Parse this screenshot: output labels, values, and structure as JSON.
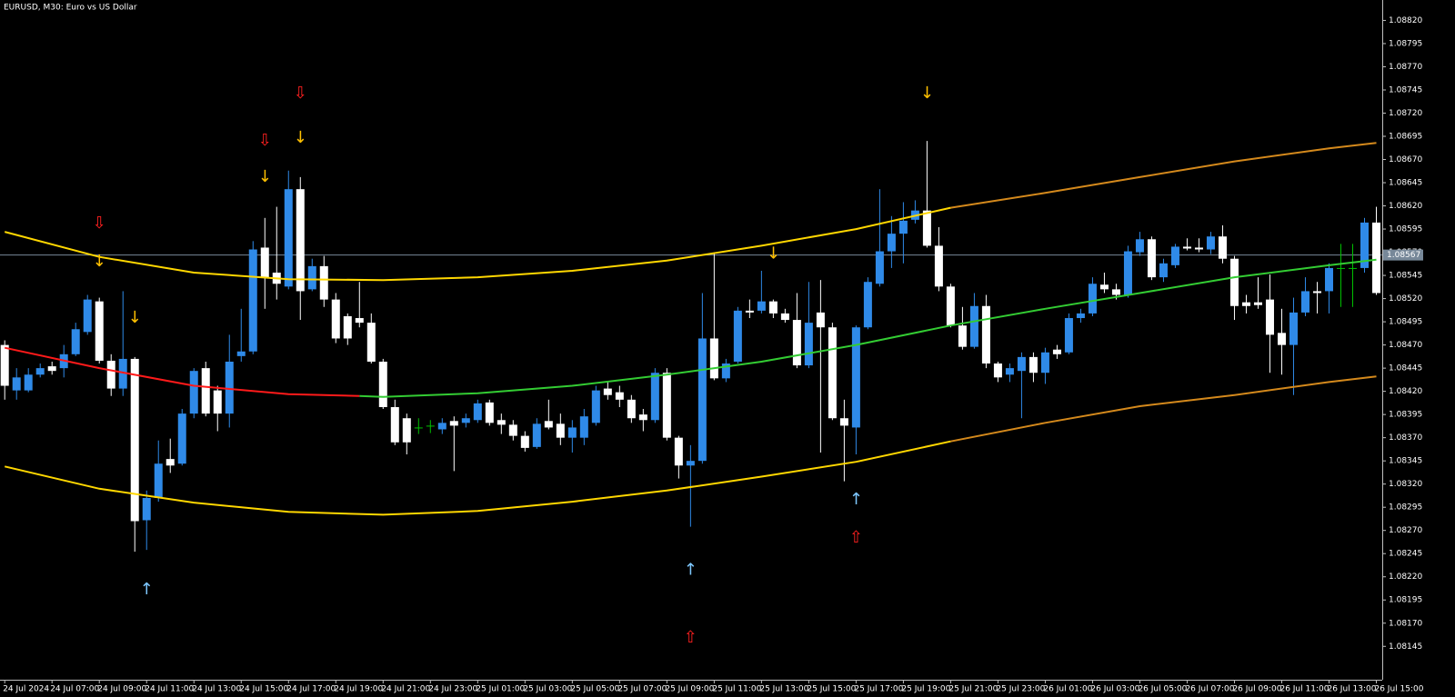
{
  "chart_data": {
    "type": "candlestick",
    "title": "EURUSD, M30:  Euro vs US Dollar",
    "up_color": "#2f8ae8",
    "down_color": "#ffffff",
    "doji_color": "#00c000",
    "current_price": 1.08567,
    "xlim": [
      -0.4,
      116.5
    ],
    "ylim": [
      1.08109,
      1.08842
    ],
    "open": [
      1.0847,
      1.08421,
      1.08421,
      1.08438,
      1.08447,
      1.08445,
      1.0846,
      1.08484,
      1.08517,
      1.08453,
      1.08423,
      1.08455,
      1.08281,
      1.08305,
      1.08347,
      1.08342,
      1.08396,
      1.08445,
      1.08421,
      1.08396,
      1.08458,
      1.08463,
      1.08575,
      1.08548,
      1.08533,
      1.08638,
      1.0853,
      1.08555,
      1.08519,
      1.08501,
      1.08499,
      1.08494,
      1.08452,
      1.08403,
      1.08391,
      1.08381,
      1.08383,
      1.08379,
      1.08388,
      1.08386,
      1.08389,
      1.08408,
      1.08389,
      1.08384,
      1.08372,
      1.0836,
      1.08388,
      1.08385,
      1.0837,
      1.0837,
      1.08386,
      1.08423,
      1.08419,
      1.08411,
      1.08395,
      1.08389,
      1.0844,
      1.0837,
      1.0834,
      1.08345,
      1.08477,
      1.08434,
      1.08452,
      1.08507,
      1.08507,
      1.08517,
      1.08504,
      1.08497,
      1.08448,
      1.08505,
      1.08489,
      1.08391,
      1.08381,
      1.08489,
      1.08536,
      1.08571,
      1.0859,
      1.08605,
      1.08615,
      1.08577,
      1.08533,
      1.08491,
      1.08468,
      1.08512,
      1.0845,
      1.08438,
      1.08442,
      1.08457,
      1.0844,
      1.08465,
      1.08462,
      1.08499,
      1.08504,
      1.08535,
      1.0853,
      1.08524,
      1.0857,
      1.08584,
      1.08543,
      1.08556,
      1.08576,
      1.08575,
      1.08573,
      1.08587,
      1.08563,
      1.08516,
      1.08516,
      1.08519,
      1.08483,
      1.0847,
      1.08505,
      1.08528,
      1.08528,
      1.08553,
      1.08553,
      1.08553,
      1.08602
    ],
    "high": [
      1.08475,
      1.08445,
      1.08445,
      1.0845,
      1.08452,
      1.0847,
      1.08494,
      1.08524,
      1.08521,
      1.0846,
      1.08528,
      1.08457,
      1.08313,
      1.08367,
      1.08369,
      1.08401,
      1.08445,
      1.08452,
      1.08426,
      1.08481,
      1.08509,
      1.08582,
      1.08607,
      1.08619,
      1.08658,
      1.08651,
      1.08563,
      1.08566,
      1.08526,
      1.08504,
      1.08538,
      1.08504,
      1.08455,
      1.08411,
      1.08396,
      1.08391,
      1.08389,
      1.08391,
      1.08393,
      1.08396,
      1.08411,
      1.08411,
      1.08396,
      1.08389,
      1.08377,
      1.08391,
      1.08411,
      1.08396,
      1.08389,
      1.08401,
      1.08426,
      1.0843,
      1.08426,
      1.08416,
      1.08401,
      1.08445,
      1.08445,
      1.08372,
      1.08362,
      1.08526,
      1.0857,
      1.08455,
      1.08511,
      1.08519,
      1.0855,
      1.08519,
      1.08509,
      1.08526,
      1.08538,
      1.0854,
      1.08494,
      1.08411,
      1.08491,
      1.08543,
      1.08638,
      1.08609,
      1.08624,
      1.08626,
      1.0869,
      1.08597,
      1.08536,
      1.08511,
      1.08526,
      1.08524,
      1.08452,
      1.0845,
      1.08462,
      1.08462,
      1.08467,
      1.0847,
      1.08504,
      1.08509,
      1.08543,
      1.08548,
      1.08536,
      1.08577,
      1.08592,
      1.08587,
      1.08563,
      1.08579,
      1.08585,
      1.08585,
      1.08592,
      1.08599,
      1.08566,
      1.08524,
      1.08543,
      1.08546,
      1.08509,
      1.08521,
      1.08543,
      1.08538,
      1.08558,
      1.08579,
      1.08579,
      1.08607,
      1.08619
    ],
    "low": [
      1.08411,
      1.08411,
      1.08419,
      1.08435,
      1.08438,
      1.08435,
      1.08458,
      1.08481,
      1.0845,
      1.08415,
      1.08415,
      1.08247,
      1.08249,
      1.08301,
      1.08332,
      1.0834,
      1.08391,
      1.08393,
      1.08377,
      1.08381,
      1.08452,
      1.0846,
      1.08509,
      1.08519,
      1.0853,
      1.08497,
      1.08528,
      1.08511,
      1.08472,
      1.0847,
      1.08489,
      1.0845,
      1.08401,
      1.08362,
      1.08352,
      1.08374,
      1.08375,
      1.08374,
      1.08334,
      1.08381,
      1.08386,
      1.08383,
      1.08374,
      1.08367,
      1.08355,
      1.08358,
      1.08379,
      1.08362,
      1.08354,
      1.08362,
      1.08383,
      1.08411,
      1.08403,
      1.08386,
      1.08377,
      1.08386,
      1.08367,
      1.08326,
      1.08274,
      1.08342,
      1.08432,
      1.0843,
      1.0845,
      1.08499,
      1.08504,
      1.08499,
      1.08494,
      1.08445,
      1.08445,
      1.08354,
      1.08389,
      1.08323,
      1.08352,
      1.08487,
      1.08533,
      1.08553,
      1.08558,
      1.08601,
      1.08575,
      1.08528,
      1.08489,
      1.08465,
      1.08466,
      1.08445,
      1.0843,
      1.0843,
      1.08391,
      1.0843,
      1.08428,
      1.08455,
      1.0846,
      1.08494,
      1.08501,
      1.08526,
      1.08519,
      1.08521,
      1.08566,
      1.0854,
      1.08538,
      1.08553,
      1.08572,
      1.0857,
      1.08568,
      1.08558,
      1.08497,
      1.08504,
      1.08509,
      1.0844,
      1.08438,
      1.08416,
      1.08501,
      1.08504,
      1.08504,
      1.08511,
      1.08511,
      1.08548,
      1.08524
    ],
    "close": [
      1.08426,
      1.08435,
      1.08438,
      1.08445,
      1.08442,
      1.0846,
      1.08487,
      1.08519,
      1.08453,
      1.08423,
      1.08455,
      1.0828,
      1.08305,
      1.08342,
      1.0834,
      1.08396,
      1.08442,
      1.08396,
      1.08396,
      1.08452,
      1.08463,
      1.08573,
      1.08543,
      1.08536,
      1.08638,
      1.08528,
      1.08555,
      1.08519,
      1.08477,
      1.08477,
      1.08494,
      1.08452,
      1.08403,
      1.08365,
      1.08365,
      1.08381,
      1.08383,
      1.08386,
      1.08383,
      1.08391,
      1.08407,
      1.08386,
      1.08384,
      1.08372,
      1.08359,
      1.08385,
      1.08381,
      1.0837,
      1.08381,
      1.08393,
      1.08421,
      1.08416,
      1.08411,
      1.08391,
      1.08389,
      1.0844,
      1.0837,
      1.0834,
      1.08345,
      1.08477,
      1.08434,
      1.0845,
      1.08507,
      1.08505,
      1.08517,
      1.08504,
      1.08497,
      1.08448,
      1.08494,
      1.08489,
      1.08391,
      1.08383,
      1.08489,
      1.08538,
      1.08571,
      1.0859,
      1.08604,
      1.08615,
      1.08577,
      1.08533,
      1.08491,
      1.08468,
      1.08512,
      1.0845,
      1.08435,
      1.08445,
      1.08457,
      1.0844,
      1.08462,
      1.0846,
      1.08499,
      1.08504,
      1.08536,
      1.0853,
      1.08524,
      1.08571,
      1.08584,
      1.08543,
      1.08558,
      1.08576,
      1.08574,
      1.08573,
      1.08587,
      1.08563,
      1.08512,
      1.08512,
      1.08513,
      1.08481,
      1.0847,
      1.08505,
      1.08528,
      1.08526,
      1.08553,
      1.08553,
      1.08553,
      1.08602,
      1.08526
    ],
    "series": [
      {
        "color": "#ffd700",
        "x": [
          0,
          8,
          16,
          24,
          32,
          40,
          48,
          56,
          64,
          72,
          80
        ],
        "values": [
          1.08592,
          1.08565,
          1.08548,
          1.08541,
          1.0854,
          1.08543,
          1.0855,
          1.08561,
          1.08577,
          1.08595,
          1.08618
        ]
      },
      {
        "color": "#d4891c",
        "x": [
          80,
          88,
          96,
          104,
          112,
          116
        ],
        "values": [
          1.08618,
          1.08634,
          1.08651,
          1.08668,
          1.08682,
          1.08688
        ]
      },
      {
        "color": "#ff1a1a",
        "x": [
          0,
          8,
          16,
          24,
          30
        ],
        "values": [
          1.08467,
          1.08445,
          1.08426,
          1.08417,
          1.08415
        ]
      },
      {
        "color": "#33cc33",
        "x": [
          30,
          32,
          40,
          48,
          56,
          64,
          72,
          80,
          88,
          96,
          104,
          112,
          116
        ],
        "values": [
          1.08415,
          1.08414,
          1.08418,
          1.08426,
          1.08438,
          1.08452,
          1.0847,
          1.08491,
          1.08509,
          1.08526,
          1.08543,
          1.08556,
          1.08562
        ]
      },
      {
        "color": "#ffd700",
        "x": [
          0,
          8,
          16,
          24,
          32,
          40,
          48,
          56,
          64,
          72,
          80
        ],
        "values": [
          1.08339,
          1.08315,
          1.083,
          1.0829,
          1.08287,
          1.08291,
          1.08301,
          1.08313,
          1.08328,
          1.08344,
          1.08366
        ]
      },
      {
        "color": "#d4891c",
        "x": [
          80,
          88,
          96,
          104,
          112,
          116
        ],
        "values": [
          1.08366,
          1.08386,
          1.08404,
          1.08416,
          1.0843,
          1.08436
        ]
      }
    ],
    "arrows": [
      {
        "color": "#ff2020",
        "symbol": "⇩",
        "x": [
          8,
          22,
          25
        ],
        "values": [
          1.08601,
          1.0869,
          1.08741
        ]
      },
      {
        "color": "#ffc000",
        "symbol": "↓",
        "x": [
          8,
          11,
          22,
          25,
          65,
          78
        ],
        "values": [
          1.0856,
          1.08499,
          1.08651,
          1.08693,
          1.08568,
          1.08741
        ]
      },
      {
        "color": "#7ec8ff",
        "symbol": "↑",
        "x": [
          12,
          58,
          72
        ],
        "values": [
          1.08206,
          1.08227,
          1.08303
        ]
      },
      {
        "color": "#ff2020",
        "symbol": "⇧",
        "x": [
          58,
          72
        ],
        "values": [
          1.08154,
          1.08262
        ]
      }
    ],
    "yticks": [
      {
        "value": 1.0882,
        "label": "1.08820"
      },
      {
        "value": 1.08795,
        "label": "1.08795"
      },
      {
        "value": 1.0877,
        "label": "1.08770"
      },
      {
        "value": 1.08745,
        "label": "1.08745"
      },
      {
        "value": 1.0872,
        "label": "1.08720"
      },
      {
        "value": 1.08695,
        "label": "1.08695"
      },
      {
        "value": 1.0867,
        "label": "1.08670"
      },
      {
        "value": 1.08645,
        "label": "1.08645"
      },
      {
        "value": 1.0862,
        "label": "1.08620"
      },
      {
        "value": 1.08595,
        "label": "1.08595"
      },
      {
        "value": 1.0857,
        "label": "1.08570"
      },
      {
        "value": 1.08545,
        "label": "1.08545"
      },
      {
        "value": 1.0852,
        "label": "1.08520"
      },
      {
        "value": 1.08495,
        "label": "1.08495"
      },
      {
        "value": 1.0847,
        "label": "1.08470"
      },
      {
        "value": 1.08445,
        "label": "1.08445"
      },
      {
        "value": 1.0842,
        "label": "1.08420"
      },
      {
        "value": 1.08395,
        "label": "1.08395"
      },
      {
        "value": 1.0837,
        "label": "1.08370"
      },
      {
        "value": 1.08345,
        "label": "1.08345"
      },
      {
        "value": 1.0832,
        "label": "1.08320"
      },
      {
        "value": 1.08295,
        "label": "1.08295"
      },
      {
        "value": 1.0827,
        "label": "1.08270"
      },
      {
        "value": 1.08245,
        "label": "1.08245"
      },
      {
        "value": 1.0822,
        "label": "1.08220"
      },
      {
        "value": 1.08195,
        "label": "1.08195"
      },
      {
        "value": 1.0817,
        "label": "1.08170"
      },
      {
        "value": 1.08145,
        "label": "1.08145"
      }
    ],
    "xticks": [
      {
        "value": 0,
        "label": "24 Jul 2024"
      },
      {
        "value": 4,
        "label": "24 Jul 07:00"
      },
      {
        "value": 8,
        "label": "24 Jul 09:00"
      },
      {
        "value": 12,
        "label": "24 Jul 11:00"
      },
      {
        "value": 16,
        "label": "24 Jul 13:00"
      },
      {
        "value": 20,
        "label": "24 Jul 15:00"
      },
      {
        "value": 24,
        "label": "24 Jul 17:00"
      },
      {
        "value": 28,
        "label": "24 Jul 19:00"
      },
      {
        "value": 32,
        "label": "24 Jul 21:00"
      },
      {
        "value": 36,
        "label": "24 Jul 23:00"
      },
      {
        "value": 40,
        "label": "25 Jul 01:00"
      },
      {
        "value": 44,
        "label": "25 Jul 03:00"
      },
      {
        "value": 48,
        "label": "25 Jul 05:00"
      },
      {
        "value": 52,
        "label": "25 Jul 07:00"
      },
      {
        "value": 56,
        "label": "25 Jul 09:00"
      },
      {
        "value": 60,
        "label": "25 Jul 11:00"
      },
      {
        "value": 64,
        "label": "25 Jul 13:00"
      },
      {
        "value": 68,
        "label": "25 Jul 15:00"
      },
      {
        "value": 72,
        "label": "25 Jul 17:00"
      },
      {
        "value": 76,
        "label": "25 Jul 19:00"
      },
      {
        "value": 80,
        "label": "25 Jul 21:00"
      },
      {
        "value": 84,
        "label": "25 Jul 23:00"
      },
      {
        "value": 88,
        "label": "26 Jul 01:00"
      },
      {
        "value": 92,
        "label": "26 Jul 03:00"
      },
      {
        "value": 96,
        "label": "26 Jul 05:00"
      },
      {
        "value": 100,
        "label": "26 Jul 07:00"
      },
      {
        "value": 104,
        "label": "26 Jul 09:00"
      },
      {
        "value": 108,
        "label": "26 Jul 11:00"
      },
      {
        "value": 112,
        "label": "26 Jul 13:00"
      },
      {
        "value": 116,
        "label": "26 Jul 15:00"
      }
    ]
  }
}
